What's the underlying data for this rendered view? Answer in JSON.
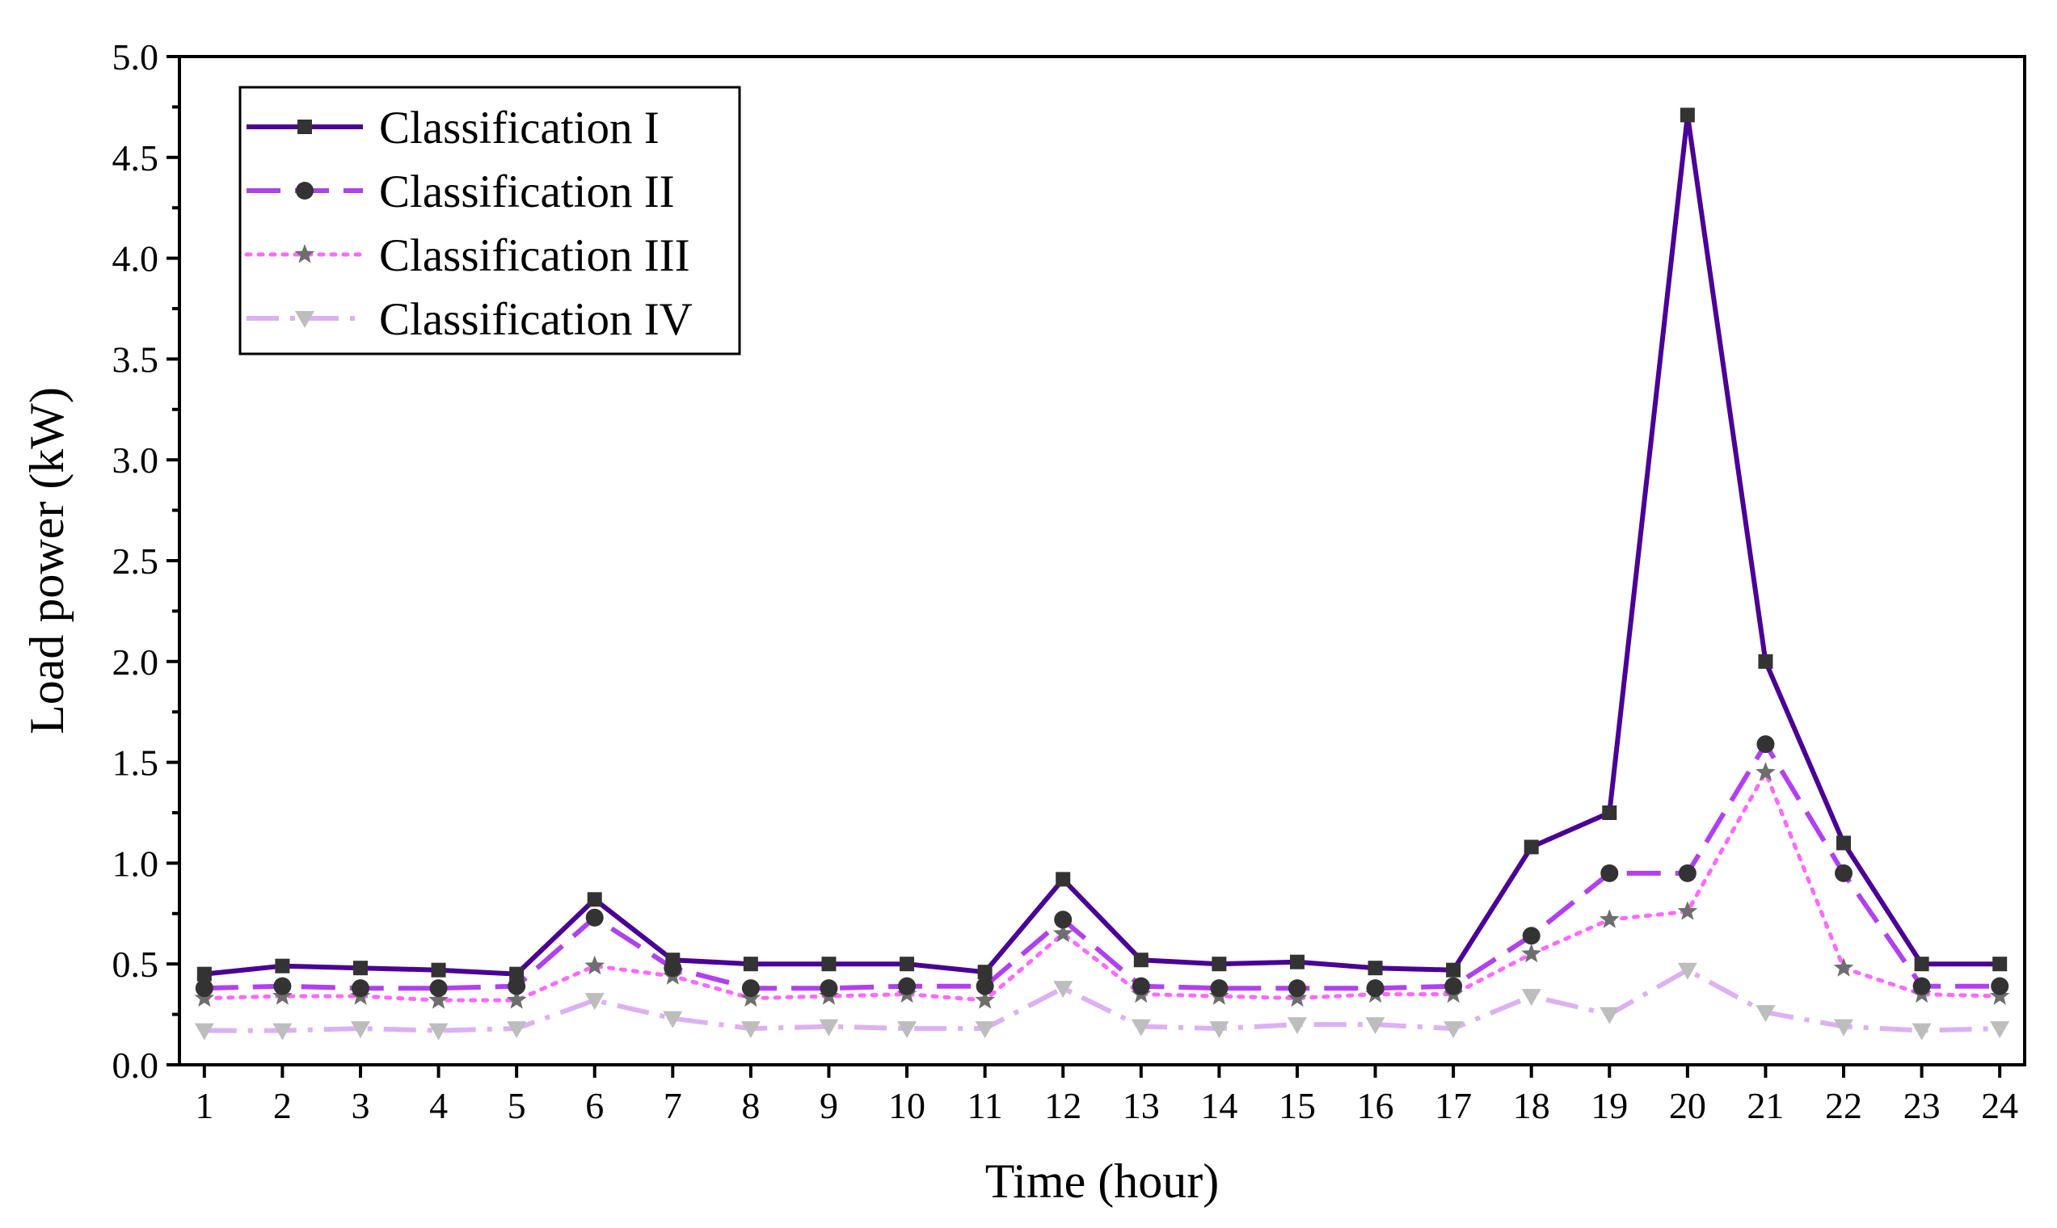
{
  "chart_data": {
    "type": "line",
    "title": "",
    "xlabel": "Time (hour)",
    "ylabel": "Load power (kW)",
    "x": [
      1,
      2,
      3,
      4,
      5,
      6,
      7,
      8,
      9,
      10,
      11,
      12,
      13,
      14,
      15,
      16,
      17,
      18,
      19,
      20,
      21,
      22,
      23,
      24
    ],
    "x_tick_labels": [
      "1",
      "2",
      "3",
      "4",
      "5",
      "6",
      "7",
      "8",
      "9",
      "10",
      "11",
      "12",
      "13",
      "14",
      "15",
      "16",
      "17",
      "18",
      "19",
      "20",
      "21",
      "22",
      "23",
      "24"
    ],
    "ylim": [
      0.0,
      5.0
    ],
    "y_ticks": [
      0.0,
      0.5,
      1.0,
      1.5,
      2.0,
      2.5,
      3.0,
      3.5,
      4.0,
      4.5,
      5.0
    ],
    "y_tick_labels": [
      "0.0",
      "0.5",
      "1.0",
      "1.5",
      "2.0",
      "2.5",
      "3.0",
      "3.5",
      "4.0",
      "4.5",
      "5.0"
    ],
    "grid": false,
    "legend_position": "top-left",
    "series": [
      {
        "name": "Classification I",
        "color": "#4B0096",
        "line_style": "solid",
        "marker": "square",
        "marker_color": "#333333",
        "values": [
          0.45,
          0.49,
          0.48,
          0.47,
          0.45,
          0.82,
          0.52,
          0.5,
          0.5,
          0.5,
          0.46,
          0.92,
          0.52,
          0.5,
          0.51,
          0.48,
          0.47,
          1.08,
          1.25,
          4.71,
          2.0,
          1.1,
          0.5,
          0.5
        ]
      },
      {
        "name": "Classification II",
        "color": "#B040F0",
        "line_style": "dash",
        "marker": "circle",
        "marker_color": "#333333",
        "values": [
          0.38,
          0.39,
          0.38,
          0.38,
          0.39,
          0.73,
          0.48,
          0.38,
          0.38,
          0.39,
          0.39,
          0.72,
          0.39,
          0.38,
          0.38,
          0.38,
          0.39,
          0.64,
          0.95,
          0.95,
          1.59,
          0.95,
          0.39,
          0.39
        ]
      },
      {
        "name": "Classification III",
        "color": "#FF66FF",
        "line_style": "dot",
        "marker": "star",
        "marker_color": "#6E6E6E",
        "values": [
          0.33,
          0.34,
          0.34,
          0.32,
          0.32,
          0.49,
          0.44,
          0.33,
          0.34,
          0.35,
          0.32,
          0.65,
          0.35,
          0.34,
          0.33,
          0.35,
          0.35,
          0.55,
          0.72,
          0.76,
          1.45,
          0.48,
          0.35,
          0.34
        ]
      },
      {
        "name": "Classification IV",
        "color": "#DDB0F4",
        "line_style": "dashdot",
        "marker": "triangle-down",
        "marker_color": "#BDBDBD",
        "values": [
          0.17,
          0.17,
          0.18,
          0.17,
          0.18,
          0.32,
          0.23,
          0.18,
          0.19,
          0.18,
          0.18,
          0.38,
          0.19,
          0.18,
          0.2,
          0.2,
          0.18,
          0.34,
          0.25,
          0.47,
          0.26,
          0.19,
          0.17,
          0.18
        ]
      }
    ]
  }
}
